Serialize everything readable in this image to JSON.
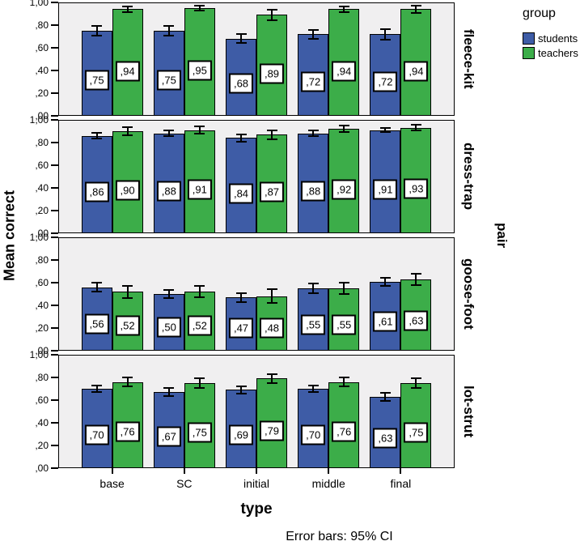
{
  "labels": {
    "ylabel": "Mean correct",
    "xlabel": "type",
    "facet_axis": "pair",
    "footnote": "Error bars: 95% CI"
  },
  "legend": {
    "title": "group",
    "entries": [
      {
        "label": "students",
        "color_key": "students"
      },
      {
        "label": "teachers",
        "color_key": "teachers"
      }
    ]
  },
  "colors": {
    "students": "#3E5CA6",
    "teachers": "#3CAD49",
    "panel_bg": "#F0EFF0",
    "frame": "#000000",
    "error_bar": "#000000"
  },
  "chart_data": {
    "type": "bar",
    "faceted": true,
    "facet_variable": "pair",
    "x_variable": "type",
    "title": "",
    "xlabel": "type",
    "ylabel": "Mean correct",
    "categories": [
      "base",
      "SC",
      "initial",
      "middle",
      "final"
    ],
    "ylim": [
      0,
      1
    ],
    "ytick_values": [
      1.0,
      0.8,
      0.6,
      0.4,
      0.2,
      0.0
    ],
    "ytick_labels": [
      "1,00",
      ",80",
      ",60",
      ",40",
      ",20",
      ",00"
    ],
    "grid": false,
    "legend_position": "top-right",
    "error_bars": "95% CI",
    "series_names": [
      "students",
      "teachers"
    ],
    "facets": [
      {
        "name": "fleece-kit",
        "series": [
          {
            "name": "students",
            "values": [
              0.75,
              0.75,
              0.68,
              0.72,
              0.72
            ],
            "value_labels": [
              ",75",
              ",75",
              ",68",
              ",72",
              ",72"
            ],
            "ci": [
              0.04,
              0.04,
              0.04,
              0.04,
              0.045
            ]
          },
          {
            "name": "teachers",
            "values": [
              0.94,
              0.95,
              0.89,
              0.94,
              0.94
            ],
            "value_labels": [
              ",94",
              ",95",
              ",89",
              ",94",
              ",94"
            ],
            "ci": [
              0.025,
              0.02,
              0.045,
              0.025,
              0.03
            ]
          }
        ]
      },
      {
        "name": "dress-trap",
        "series": [
          {
            "name": "students",
            "values": [
              0.86,
              0.88,
              0.84,
              0.88,
              0.91
            ],
            "value_labels": [
              ",86",
              ",88",
              ",84",
              ",88",
              ",91"
            ],
            "ci": [
              0.025,
              0.025,
              0.03,
              0.025,
              0.02
            ]
          },
          {
            "name": "teachers",
            "values": [
              0.9,
              0.91,
              0.87,
              0.92,
              0.93
            ],
            "value_labels": [
              ",90",
              ",91",
              ",87",
              ",92",
              ",93"
            ],
            "ci": [
              0.035,
              0.03,
              0.04,
              0.03,
              0.025
            ]
          }
        ]
      },
      {
        "name": "goose-foot",
        "series": [
          {
            "name": "students",
            "values": [
              0.56,
              0.5,
              0.47,
              0.55,
              0.61
            ],
            "value_labels": [
              ",56",
              ",50",
              ",47",
              ",55",
              ",61"
            ],
            "ci": [
              0.04,
              0.035,
              0.04,
              0.04,
              0.035
            ]
          },
          {
            "name": "teachers",
            "values": [
              0.52,
              0.52,
              0.48,
              0.55,
              0.63
            ],
            "value_labels": [
              ",52",
              ",52",
              ",48",
              ",55",
              ",63"
            ],
            "ci": [
              0.055,
              0.05,
              0.06,
              0.05,
              0.05
            ]
          }
        ]
      },
      {
        "name": "lot-strut",
        "series": [
          {
            "name": "students",
            "values": [
              0.7,
              0.67,
              0.69,
              0.7,
              0.63
            ],
            "value_labels": [
              ",70",
              ",67",
              ",69",
              ",70",
              ",63"
            ],
            "ci": [
              0.03,
              0.035,
              0.03,
              0.03,
              0.035
            ]
          },
          {
            "name": "teachers",
            "values": [
              0.76,
              0.75,
              0.79,
              0.76,
              0.75
            ],
            "value_labels": [
              ",76",
              ",75",
              ",79",
              ",76",
              ",75"
            ],
            "ci": [
              0.04,
              0.045,
              0.04,
              0.04,
              0.04
            ]
          }
        ]
      }
    ]
  }
}
